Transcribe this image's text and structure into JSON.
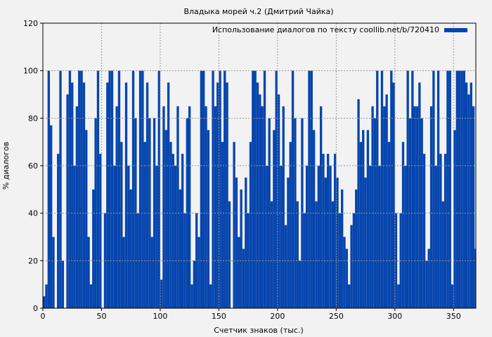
{
  "chart_data": {
    "type": "bar",
    "title": "Владыка морей ч.2 (Дмитрий Чайка)",
    "xlabel": "Счетчик знаков (тыс.)",
    "ylabel": "% диалогов",
    "xlim": [
      0,
      369
    ],
    "ylim": [
      0,
      120
    ],
    "xticks": [
      0,
      50,
      100,
      150,
      200,
      250,
      300,
      350
    ],
    "yticks": [
      0,
      20,
      40,
      60,
      80,
      100,
      120
    ],
    "grid": true,
    "legend": {
      "label": "Использование диалогов по тексту coollib.net/b/720410",
      "placement": "top-right"
    },
    "bar_color": "#0645ad",
    "x_start": 0,
    "x_step": 2,
    "values": [
      5,
      10,
      100,
      77,
      30,
      0,
      65,
      100,
      20,
      0,
      90,
      100,
      95,
      60,
      85,
      100,
      100,
      95,
      75,
      30,
      10,
      50,
      80,
      100,
      65,
      0,
      40,
      95,
      100,
      100,
      60,
      85,
      100,
      70,
      30,
      95,
      60,
      50,
      100,
      80,
      40,
      100,
      100,
      70,
      95,
      80,
      30,
      80,
      60,
      100,
      12,
      85,
      75,
      95,
      70,
      65,
      60,
      85,
      50,
      65,
      40,
      80,
      85,
      10,
      20,
      40,
      30,
      100,
      100,
      85,
      75,
      10,
      100,
      85,
      95,
      100,
      70,
      100,
      95,
      45,
      0,
      70,
      55,
      30,
      50,
      25,
      55,
      40,
      70,
      100,
      100,
      95,
      90,
      85,
      100,
      60,
      80,
      45,
      75,
      100,
      90,
      60,
      85,
      35,
      55,
      70,
      100,
      80,
      45,
      20,
      80,
      40,
      60,
      100,
      100,
      75,
      45,
      60,
      85,
      65,
      55,
      65,
      60,
      45,
      65,
      55,
      40,
      50,
      30,
      25,
      10,
      35,
      40,
      50,
      88,
      70,
      75,
      55,
      75,
      60,
      85,
      80,
      100,
      60,
      100,
      85,
      90,
      70,
      100,
      95,
      40,
      10,
      40,
      70,
      60,
      100,
      80,
      100,
      85,
      85,
      95,
      80,
      65,
      20,
      25,
      85,
      100,
      60,
      100,
      65,
      45,
      65,
      100,
      100,
      10,
      75,
      100,
      100,
      100,
      100,
      95,
      90,
      95,
      85,
      25
    ]
  }
}
